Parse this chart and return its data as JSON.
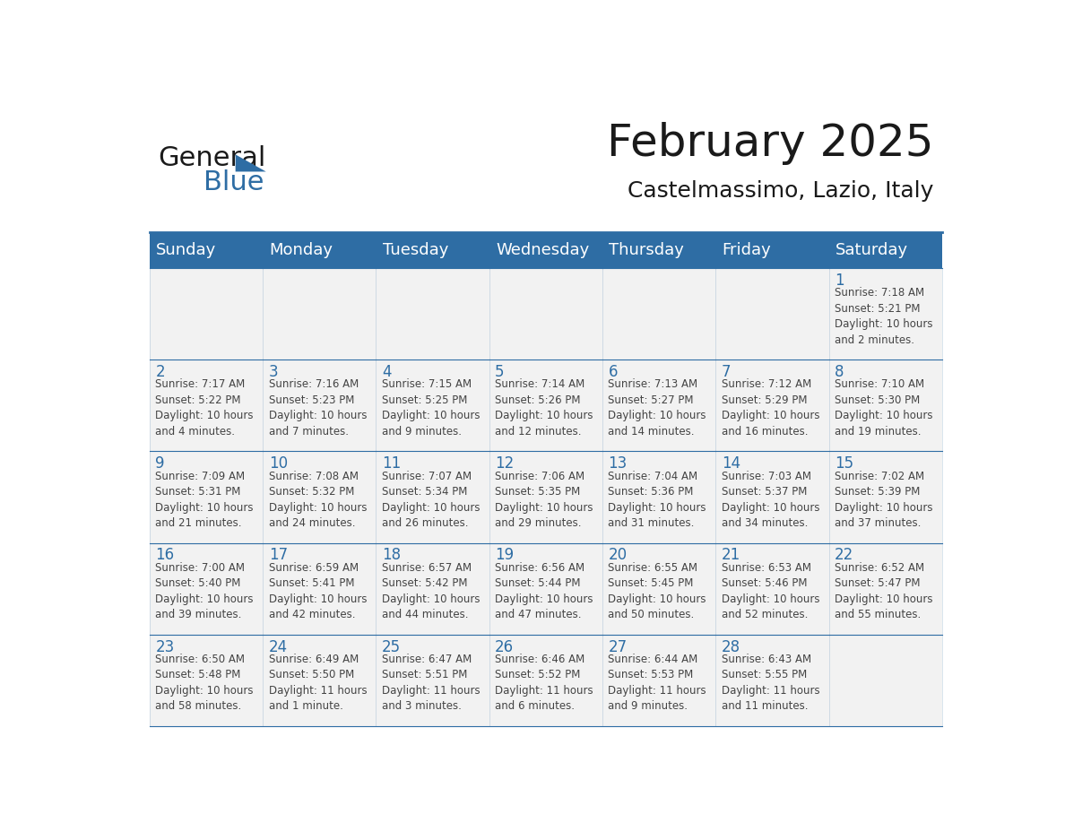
{
  "title": "February 2025",
  "subtitle": "Castelmassimo, Lazio, Italy",
  "header_bg": "#2E6DA4",
  "header_text_color": "#FFFFFF",
  "cell_bg": "#F2F2F2",
  "text_color": "#444444",
  "day_number_color": "#2E6DA4",
  "border_color": "#2E6DA4",
  "days_of_week": [
    "Sunday",
    "Monday",
    "Tuesday",
    "Wednesday",
    "Thursday",
    "Friday",
    "Saturday"
  ],
  "weeks": [
    [
      {
        "day": null,
        "info": null
      },
      {
        "day": null,
        "info": null
      },
      {
        "day": null,
        "info": null
      },
      {
        "day": null,
        "info": null
      },
      {
        "day": null,
        "info": null
      },
      {
        "day": null,
        "info": null
      },
      {
        "day": 1,
        "info": "Sunrise: 7:18 AM\nSunset: 5:21 PM\nDaylight: 10 hours\nand 2 minutes."
      }
    ],
    [
      {
        "day": 2,
        "info": "Sunrise: 7:17 AM\nSunset: 5:22 PM\nDaylight: 10 hours\nand 4 minutes."
      },
      {
        "day": 3,
        "info": "Sunrise: 7:16 AM\nSunset: 5:23 PM\nDaylight: 10 hours\nand 7 minutes."
      },
      {
        "day": 4,
        "info": "Sunrise: 7:15 AM\nSunset: 5:25 PM\nDaylight: 10 hours\nand 9 minutes."
      },
      {
        "day": 5,
        "info": "Sunrise: 7:14 AM\nSunset: 5:26 PM\nDaylight: 10 hours\nand 12 minutes."
      },
      {
        "day": 6,
        "info": "Sunrise: 7:13 AM\nSunset: 5:27 PM\nDaylight: 10 hours\nand 14 minutes."
      },
      {
        "day": 7,
        "info": "Sunrise: 7:12 AM\nSunset: 5:29 PM\nDaylight: 10 hours\nand 16 minutes."
      },
      {
        "day": 8,
        "info": "Sunrise: 7:10 AM\nSunset: 5:30 PM\nDaylight: 10 hours\nand 19 minutes."
      }
    ],
    [
      {
        "day": 9,
        "info": "Sunrise: 7:09 AM\nSunset: 5:31 PM\nDaylight: 10 hours\nand 21 minutes."
      },
      {
        "day": 10,
        "info": "Sunrise: 7:08 AM\nSunset: 5:32 PM\nDaylight: 10 hours\nand 24 minutes."
      },
      {
        "day": 11,
        "info": "Sunrise: 7:07 AM\nSunset: 5:34 PM\nDaylight: 10 hours\nand 26 minutes."
      },
      {
        "day": 12,
        "info": "Sunrise: 7:06 AM\nSunset: 5:35 PM\nDaylight: 10 hours\nand 29 minutes."
      },
      {
        "day": 13,
        "info": "Sunrise: 7:04 AM\nSunset: 5:36 PM\nDaylight: 10 hours\nand 31 minutes."
      },
      {
        "day": 14,
        "info": "Sunrise: 7:03 AM\nSunset: 5:37 PM\nDaylight: 10 hours\nand 34 minutes."
      },
      {
        "day": 15,
        "info": "Sunrise: 7:02 AM\nSunset: 5:39 PM\nDaylight: 10 hours\nand 37 minutes."
      }
    ],
    [
      {
        "day": 16,
        "info": "Sunrise: 7:00 AM\nSunset: 5:40 PM\nDaylight: 10 hours\nand 39 minutes."
      },
      {
        "day": 17,
        "info": "Sunrise: 6:59 AM\nSunset: 5:41 PM\nDaylight: 10 hours\nand 42 minutes."
      },
      {
        "day": 18,
        "info": "Sunrise: 6:57 AM\nSunset: 5:42 PM\nDaylight: 10 hours\nand 44 minutes."
      },
      {
        "day": 19,
        "info": "Sunrise: 6:56 AM\nSunset: 5:44 PM\nDaylight: 10 hours\nand 47 minutes."
      },
      {
        "day": 20,
        "info": "Sunrise: 6:55 AM\nSunset: 5:45 PM\nDaylight: 10 hours\nand 50 minutes."
      },
      {
        "day": 21,
        "info": "Sunrise: 6:53 AM\nSunset: 5:46 PM\nDaylight: 10 hours\nand 52 minutes."
      },
      {
        "day": 22,
        "info": "Sunrise: 6:52 AM\nSunset: 5:47 PM\nDaylight: 10 hours\nand 55 minutes."
      }
    ],
    [
      {
        "day": 23,
        "info": "Sunrise: 6:50 AM\nSunset: 5:48 PM\nDaylight: 10 hours\nand 58 minutes."
      },
      {
        "day": 24,
        "info": "Sunrise: 6:49 AM\nSunset: 5:50 PM\nDaylight: 11 hours\nand 1 minute."
      },
      {
        "day": 25,
        "info": "Sunrise: 6:47 AM\nSunset: 5:51 PM\nDaylight: 11 hours\nand 3 minutes."
      },
      {
        "day": 26,
        "info": "Sunrise: 6:46 AM\nSunset: 5:52 PM\nDaylight: 11 hours\nand 6 minutes."
      },
      {
        "day": 27,
        "info": "Sunrise: 6:44 AM\nSunset: 5:53 PM\nDaylight: 11 hours\nand 9 minutes."
      },
      {
        "day": 28,
        "info": "Sunrise: 6:43 AM\nSunset: 5:55 PM\nDaylight: 11 hours\nand 11 minutes."
      },
      {
        "day": null,
        "info": null
      }
    ]
  ],
  "logo_text_general": "General",
  "logo_text_blue": "Blue",
  "logo_triangle_color": "#2E6DA4",
  "header_fontsize": 36,
  "subtitle_fontsize": 18,
  "day_header_fontsize": 13,
  "day_number_fontsize": 12,
  "info_fontsize": 8.5
}
